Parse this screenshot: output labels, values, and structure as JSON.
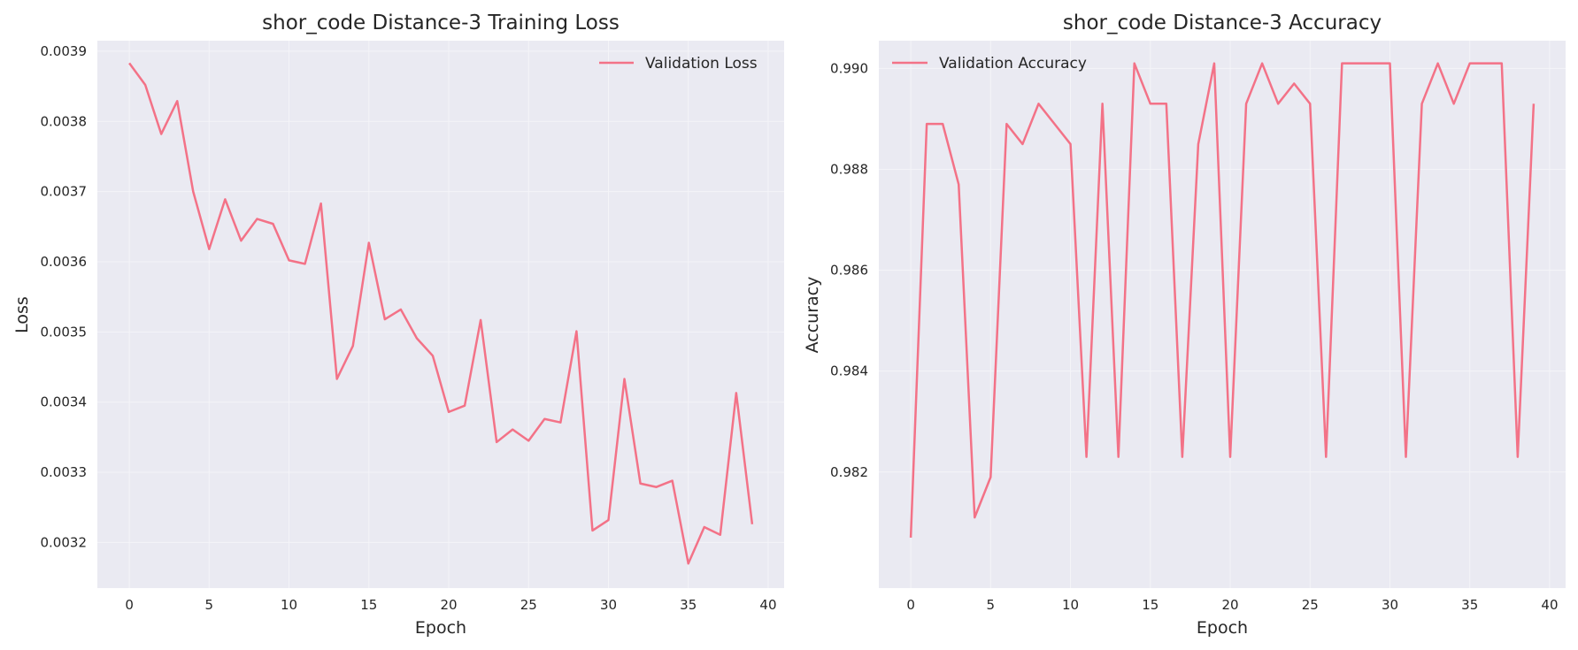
{
  "colors": {
    "line": "#f37287",
    "plot_bg": "#eaeaf2",
    "grid": "#f4f4f8",
    "text": "#262626"
  },
  "chart_data": [
    {
      "type": "line",
      "title": "shor_code Distance-3 Training Loss",
      "xlabel": "Epoch",
      "ylabel": "Loss",
      "xlim": [
        -2,
        41
      ],
      "ylim": [
        0.003135,
        0.003915
      ],
      "xticks": [
        0,
        5,
        10,
        15,
        20,
        25,
        30,
        35,
        40
      ],
      "yticks": [
        0.0032,
        0.0033,
        0.0034,
        0.0035,
        0.0036,
        0.0037,
        0.0038,
        0.0039
      ],
      "ytick_labels": [
        "0.0032",
        "0.0033",
        "0.0034",
        "0.0035",
        "0.0036",
        "0.0037",
        "0.0038",
        "0.0039"
      ],
      "grid": true,
      "legend_position": "upper right",
      "series": [
        {
          "name": "Validation Loss",
          "x": [
            0,
            1,
            2,
            3,
            4,
            5,
            6,
            7,
            8,
            9,
            10,
            11,
            12,
            13,
            14,
            15,
            16,
            17,
            18,
            19,
            20,
            21,
            22,
            23,
            24,
            25,
            26,
            27,
            28,
            29,
            30,
            31,
            32,
            33,
            34,
            35,
            36,
            37,
            38,
            39
          ],
          "y": [
            0.003883,
            0.003852,
            0.003782,
            0.003829,
            0.0037,
            0.003618,
            0.003689,
            0.00363,
            0.003661,
            0.003654,
            0.003602,
            0.003597,
            0.003683,
            0.003433,
            0.00348,
            0.003627,
            0.003518,
            0.003532,
            0.003491,
            0.003466,
            0.003386,
            0.003395,
            0.003517,
            0.003343,
            0.003361,
            0.003345,
            0.003376,
            0.003371,
            0.003501,
            0.003217,
            0.003232,
            0.003433,
            0.003284,
            0.003279,
            0.003288,
            0.00317,
            0.003222,
            0.003211,
            0.003413,
            0.003226
          ]
        }
      ]
    },
    {
      "type": "line",
      "title": "shor_code Distance-3 Accuracy",
      "xlabel": "Epoch",
      "ylabel": "Accuracy",
      "xlim": [
        -2,
        41
      ],
      "ylim": [
        0.9797,
        0.99055
      ],
      "xticks": [
        0,
        5,
        10,
        15,
        20,
        25,
        30,
        35,
        40
      ],
      "yticks": [
        0.982,
        0.984,
        0.986,
        0.988,
        0.99
      ],
      "ytick_labels": [
        "0.982",
        "0.984",
        "0.986",
        "0.988",
        "0.990"
      ],
      "grid": true,
      "legend_position": "upper left",
      "series": [
        {
          "name": "Validation Accuracy",
          "x": [
            0,
            1,
            2,
            3,
            4,
            5,
            6,
            7,
            8,
            9,
            10,
            11,
            12,
            13,
            14,
            15,
            16,
            17,
            18,
            19,
            20,
            21,
            22,
            23,
            24,
            25,
            26,
            27,
            28,
            29,
            30,
            31,
            32,
            33,
            34,
            35,
            36,
            37,
            38,
            39
          ],
          "y": [
            0.9807,
            0.9889,
            0.9889,
            0.9877,
            0.9811,
            0.9819,
            0.9889,
            0.9885,
            0.9893,
            0.9889,
            0.9885,
            0.9823,
            0.9893,
            0.9823,
            0.9901,
            0.9893,
            0.9893,
            0.9823,
            0.9885,
            0.9901,
            0.9823,
            0.9893,
            0.9901,
            0.9893,
            0.9897,
            0.9893,
            0.9823,
            0.9901,
            0.9901,
            0.9901,
            0.9901,
            0.9823,
            0.9893,
            0.9901,
            0.9893,
            0.9901,
            0.9901,
            0.9901,
            0.9823,
            0.9893
          ]
        }
      ]
    }
  ]
}
